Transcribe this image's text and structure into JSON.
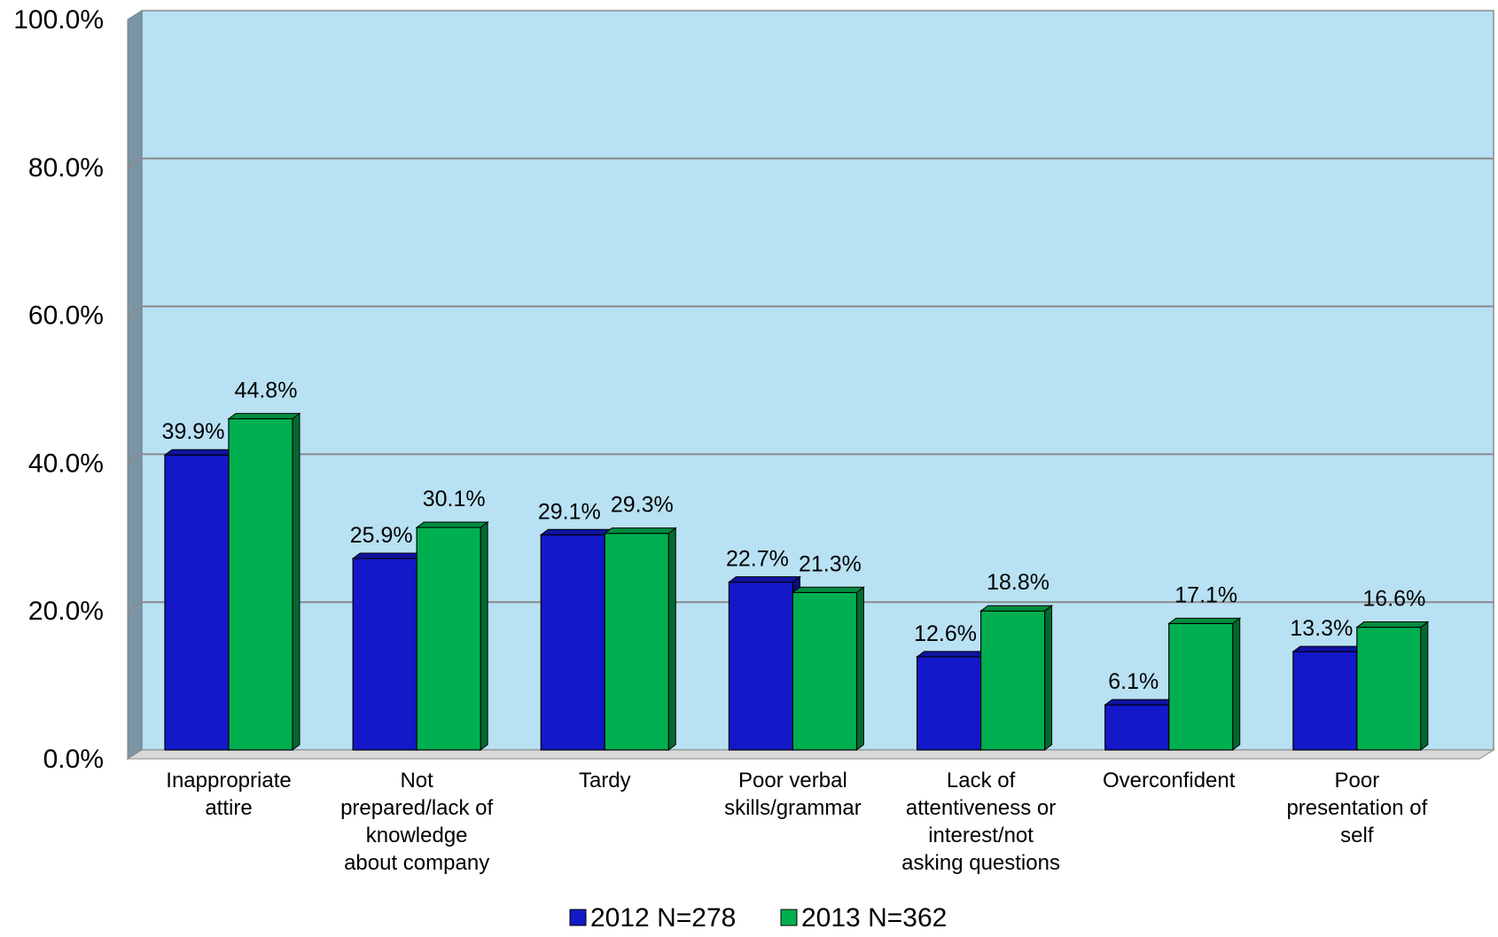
{
  "chart_data": {
    "type": "bar",
    "title": "",
    "xlabel": "",
    "ylabel": "",
    "ylim": [
      0,
      100
    ],
    "y_ticks": [
      "0.0%",
      "20.0%",
      "40.0%",
      "60.0%",
      "80.0%",
      "100.0%"
    ],
    "y_tick_values": [
      0,
      20,
      40,
      60,
      80,
      100
    ],
    "grid": true,
    "legend_position": "bottom-center",
    "style": "3d-clustered-column",
    "categories": [
      [
        "Inappropriate",
        "attire"
      ],
      [
        "Not",
        "prepared/lack of",
        "knowledge",
        "about company"
      ],
      [
        "Tardy"
      ],
      [
        "Poor verbal",
        "skills/grammar"
      ],
      [
        "Lack of",
        "attentiveness or",
        "interest/not",
        "asking questions"
      ],
      [
        "Overconfident"
      ],
      [
        "Poor",
        "presentation of",
        "self"
      ]
    ],
    "series": [
      {
        "name": "2012 N=278",
        "values": [
          39.9,
          25.9,
          29.1,
          22.7,
          12.6,
          6.1,
          13.3
        ],
        "labels": [
          "39.9%",
          "25.9%",
          "29.1%",
          "22.7%",
          "12.6%",
          "6.1%",
          "13.3%"
        ],
        "color": "#1318c8"
      },
      {
        "name": "2013 N=362",
        "values": [
          44.8,
          30.1,
          29.3,
          21.3,
          18.8,
          17.1,
          16.6
        ],
        "labels": [
          "44.8%",
          "30.1%",
          "29.3%",
          "21.3%",
          "18.8%",
          "17.1%",
          "16.6%"
        ],
        "color": "#00b050"
      }
    ],
    "colors": {
      "plot_background": "#b8e1f3",
      "gridline": "#8a8a8a",
      "side_wall": "#7c95a4",
      "floor": "#d9d9d9"
    }
  }
}
